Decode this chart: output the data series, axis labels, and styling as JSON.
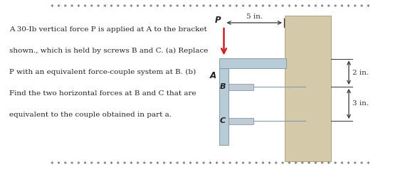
{
  "bg_color": "#ffffff",
  "wall_color": "#d4c9a8",
  "wall_edge_color": "#b8a888",
  "bracket_color": "#b8ccd8",
  "bracket_edge_color": "#8899aa",
  "screw_color": "#c0ccd5",
  "screw_edge_color": "#8899aa",
  "text_color": "#222222",
  "star_color": "#666666",
  "arrow_color": "#cc2222",
  "dim_color": "#333333",
  "title_line1": "A 30-Ib vertical force P is applied at A to the bracket",
  "title_line2": "shown., which is held by screws B and C. (a) Replace",
  "title_line3": "P with an equivalent force-couple system at B. (b)",
  "title_line4": "Find the two horizontal forces at B and C that are",
  "title_line5": "equivalent to the couple obtained in part a.",
  "label_P": "P",
  "label_A": "A",
  "label_B": "B",
  "label_C": "C",
  "dim_5in": "5 in.",
  "dim_2in": "2 in.",
  "dim_3in": "3 in.",
  "fig_width": 5.9,
  "fig_height": 2.42,
  "dpi": 100,
  "star_row_top": "* * * * * * * * * * * * * * * * * * * * * * * * * * * * * * * * * * * * * * * * * * * * * * * * *",
  "star_row_bot": "* * * * * * * * * * * * * * * * * * * * * * * * * * * * * * * * * * * * * * * * * * * * * * * * *"
}
